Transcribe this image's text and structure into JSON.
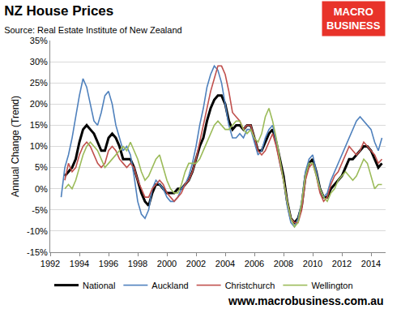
{
  "chart_data": {
    "type": "line",
    "title": "NZ House Prices",
    "subtitle": "Source: Real Estate Institute of New Zealand",
    "y_label": "Annual Change (Trend)",
    "logo": [
      "MACRO",
      "BUSINESS"
    ],
    "footer": "www.macrobusiness.com.au",
    "grid": true,
    "legend": "bottom",
    "xlim": [
      1992,
      2015
    ],
    "xticks": [
      1992,
      1994,
      1996,
      1998,
      2000,
      2002,
      2004,
      2006,
      2008,
      2010,
      2012,
      2014
    ],
    "ylim": [
      -15,
      35
    ],
    "yticks": [
      {
        "value": -15,
        "label": "-15%"
      },
      {
        "value": -10,
        "label": "-10%"
      },
      {
        "value": -5,
        "label": "-5%"
      },
      {
        "value": 0,
        "label": "0%"
      },
      {
        "value": 5,
        "label": "5%"
      },
      {
        "value": 10,
        "label": "10%"
      },
      {
        "value": 15,
        "label": "15%"
      },
      {
        "value": 20,
        "label": "20%"
      },
      {
        "value": 25,
        "label": "25%"
      },
      {
        "value": 30,
        "label": "30%"
      },
      {
        "value": 35,
        "label": "35%"
      }
    ],
    "x": [
      1992.75,
      1993,
      1993.25,
      1993.5,
      1993.75,
      1994,
      1994.25,
      1994.5,
      1994.75,
      1995,
      1995.25,
      1995.5,
      1995.75,
      1996,
      1996.25,
      1996.5,
      1996.75,
      1997,
      1997.25,
      1997.5,
      1997.75,
      1998,
      1998.25,
      1998.5,
      1998.75,
      1999,
      1999.25,
      1999.5,
      1999.75,
      2000,
      2000.25,
      2000.5,
      2000.75,
      2001,
      2001.25,
      2001.5,
      2001.75,
      2002,
      2002.25,
      2002.5,
      2002.75,
      2003,
      2003.25,
      2003.5,
      2003.75,
      2004,
      2004.25,
      2004.5,
      2004.75,
      2005,
      2005.25,
      2005.5,
      2005.75,
      2006,
      2006.25,
      2006.5,
      2006.75,
      2007,
      2007.25,
      2007.5,
      2007.75,
      2008,
      2008.25,
      2008.5,
      2008.75,
      2009,
      2009.25,
      2009.5,
      2009.75,
      2010,
      2010.25,
      2010.5,
      2010.75,
      2011,
      2011.25,
      2011.5,
      2011.75,
      2012,
      2012.25,
      2012.5,
      2012.75,
      2013,
      2013.25,
      2013.5,
      2013.75,
      2014,
      2014.25,
      2014.5,
      2014.75
    ],
    "series": [
      {
        "name": "National",
        "color": "#000000",
        "values": [
          null,
          3,
          4,
          5,
          7,
          11,
          14,
          15,
          14,
          13,
          11,
          9,
          9,
          12,
          13,
          12,
          10,
          7,
          7,
          7,
          5,
          2,
          -1,
          -3,
          -4,
          -1,
          1,
          1,
          0,
          -1,
          -1,
          -1,
          0,
          0,
          1,
          2,
          4,
          7,
          10,
          12,
          16,
          19,
          21,
          22,
          22,
          20,
          16,
          14,
          15,
          15,
          14,
          15,
          15,
          12,
          9,
          9,
          11,
          13,
          14,
          11,
          7,
          3,
          -3,
          -7,
          -8,
          -7,
          -4,
          3,
          6,
          7,
          4,
          0,
          -2,
          -2,
          0,
          1,
          2,
          3,
          5,
          7,
          7,
          8,
          9,
          10,
          10,
          9,
          7,
          5,
          6
        ]
      },
      {
        "name": "Auckland",
        "color": "#4f81bd",
        "values": [
          -2,
          5,
          8,
          12,
          17,
          22,
          26,
          24,
          20,
          16,
          15,
          18,
          22,
          23,
          20,
          15,
          12,
          9,
          10,
          8,
          3,
          -3,
          -6,
          -7,
          -5,
          0,
          2,
          1,
          0,
          -2,
          -3,
          -3,
          -2,
          0,
          1,
          3,
          6,
          10,
          15,
          19,
          24,
          27,
          29,
          28,
          25,
          20,
          15,
          12,
          12,
          13,
          12,
          14,
          14,
          11,
          8,
          9,
          12,
          14,
          15,
          11,
          6,
          2,
          -4,
          -8,
          -9,
          -7,
          -3,
          4,
          7,
          8,
          4,
          0,
          -2,
          -1,
          2,
          4,
          6,
          8,
          10,
          12,
          14,
          16,
          17,
          16,
          15,
          14,
          11,
          9,
          12
        ]
      },
      {
        "name": "Christchurch",
        "color": "#c0504d",
        "values": [
          null,
          2,
          6,
          4,
          5,
          8,
          10,
          11,
          10,
          8,
          6,
          5,
          6,
          9,
          10,
          9,
          7,
          6,
          5,
          6,
          5,
          2,
          0,
          -2,
          -2,
          0,
          1,
          2,
          1,
          -1,
          -2,
          -3,
          -2,
          -1,
          1,
          2,
          4,
          7,
          11,
          15,
          19,
          23,
          26,
          29,
          29,
          27,
          23,
          18,
          17,
          16,
          14,
          15,
          15,
          12,
          9,
          8,
          9,
          11,
          13,
          10,
          6,
          2,
          -3,
          -7,
          -8,
          -8,
          -5,
          2,
          5,
          6,
          3,
          -1,
          -3,
          -2,
          1,
          3,
          4,
          6,
          8,
          10,
          9,
          8,
          9,
          11,
          10,
          9,
          8,
          6,
          7
        ]
      },
      {
        "name": "Wellington",
        "color": "#9bbb59",
        "values": [
          null,
          0,
          1,
          0,
          2,
          5,
          8,
          10,
          11,
          10,
          9,
          7,
          5,
          6,
          7,
          8,
          9,
          10,
          9,
          11,
          9,
          7,
          4,
          2,
          3,
          5,
          7,
          8,
          5,
          2,
          0,
          -1,
          -1,
          1,
          4,
          6,
          6,
          6,
          7,
          9,
          11,
          13,
          15,
          16,
          15,
          14,
          14,
          15,
          16,
          16,
          14,
          13,
          14,
          12,
          11,
          13,
          17,
          19,
          16,
          12,
          7,
          2,
          -3,
          -7,
          -9,
          -8,
          -3,
          3,
          6,
          6,
          3,
          0,
          -2,
          -3,
          -1,
          0,
          2,
          3,
          4,
          3,
          2,
          3,
          5,
          7,
          6,
          3,
          0,
          1,
          1
        ]
      }
    ]
  }
}
